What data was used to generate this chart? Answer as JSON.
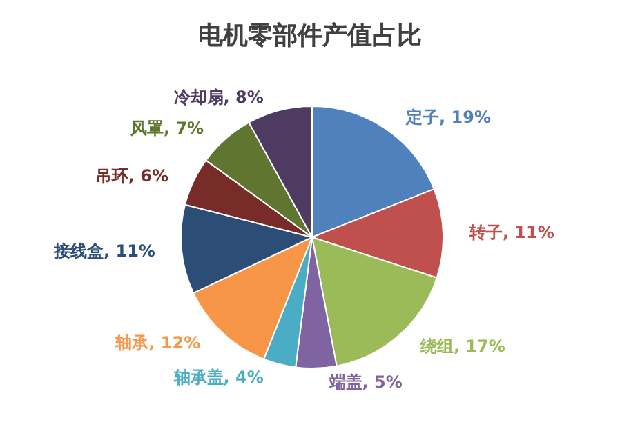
{
  "chart_data": {
    "type": "pie",
    "title": "电机零部件产值占比",
    "categories": [
      "定子",
      "转子",
      "绕组",
      "端盖",
      "轴承盖",
      "轴承",
      "接线盒",
      "吊环",
      "风罩",
      "冷却扇"
    ],
    "values": [
      19,
      11,
      17,
      5,
      4,
      12,
      11,
      6,
      7,
      8
    ],
    "value_labels": [
      "19%",
      "11%",
      "17%",
      "5%",
      "4%",
      "12%",
      "11%",
      "6%",
      "7%",
      "8%"
    ],
    "colors": [
      "#4f81bd",
      "#c0504d",
      "#9bbb59",
      "#8064a2",
      "#4bacc6",
      "#f79646",
      "#2c4d75",
      "#772c2a",
      "#5f7530",
      "#4d3b62"
    ],
    "legend": false
  }
}
